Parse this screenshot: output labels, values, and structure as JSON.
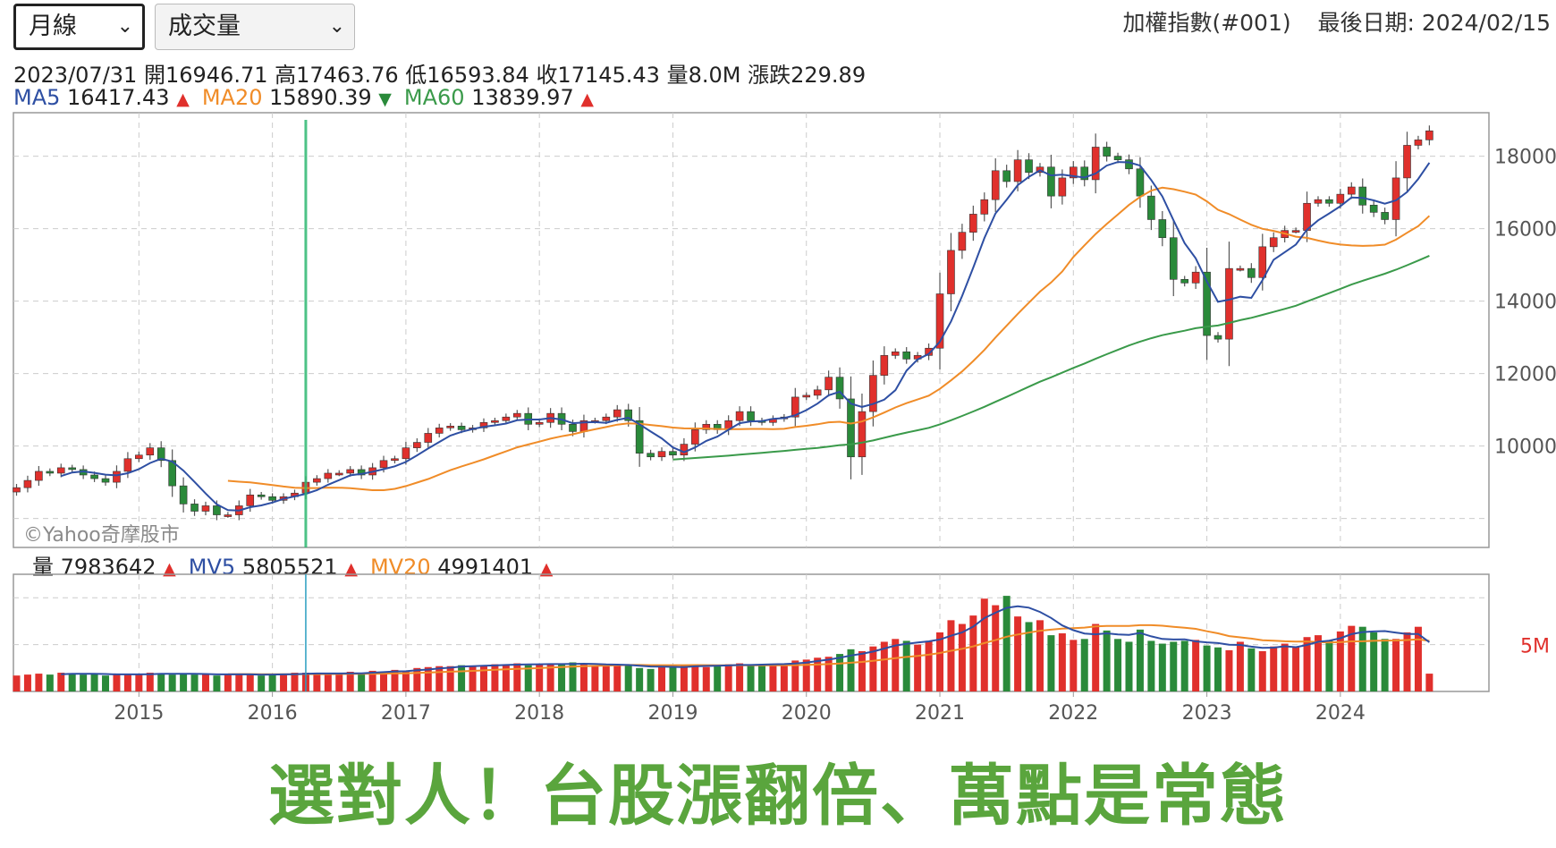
{
  "controls": {
    "period_select": {
      "label": "月線"
    },
    "indicator_select": {
      "label": "成交量"
    }
  },
  "header": {
    "index_name": "加權指數(#001)",
    "last_date_label": "最後日期: 2024/02/15"
  },
  "ohlc": {
    "date": "2023/07/31",
    "open_label": "開16946.71",
    "high_label": "高17463.76",
    "low_label": "低16593.84",
    "close_label": "收17145.43",
    "volume_label": "量8.0M",
    "change_label": "漲跌229.89"
  },
  "ma_legend": [
    {
      "name": "MA5",
      "value": "16417.43",
      "arrow": "▲",
      "trend": "up",
      "color": "#2e4fa3"
    },
    {
      "name": "MA20",
      "value": "15890.39",
      "arrow": "▼",
      "trend": "down",
      "color": "#f08c28"
    },
    {
      "name": "MA60",
      "value": "13839.97",
      "arrow": "▲",
      "trend": "up",
      "color": "#3a9a4a"
    }
  ],
  "volume_legend": [
    {
      "name": "量",
      "value": "7983642",
      "arrow": "▲",
      "trend": "up",
      "color": "#222222"
    },
    {
      "name": "MV5",
      "value": "5805521",
      "arrow": "▲",
      "trend": "up",
      "color": "#2e4fa3"
    },
    {
      "name": "MV20",
      "value": "4991401",
      "arrow": "▲",
      "trend": "up",
      "color": "#f08c28"
    }
  ],
  "watermark": "©Yahoo奇摩股市",
  "headline": "選對人！台股漲翻倍、萬點是常態",
  "colors": {
    "up": "#e0302c",
    "down": "#2a8a3a",
    "cursor": "#2eb872",
    "grid": "#cccccc"
  },
  "chart_data": [
    {
      "type": "candlestick",
      "title": "",
      "xlabel": "",
      "ylabel": "",
      "x_ticks": [
        "2015",
        "2016",
        "2017",
        "2018",
        "2019",
        "2020",
        "2021",
        "2022",
        "2023",
        "2024"
      ],
      "y_ticks": [
        10000,
        12000,
        14000,
        16000,
        18000
      ],
      "ylim": [
        7200,
        19200
      ],
      "grid": true,
      "highlighted_month": "2023/07/31",
      "monthly_closes": [
        8850,
        9050,
        9300,
        9250,
        9400,
        9350,
        9200,
        9100,
        9000,
        9300,
        9650,
        9750,
        9950,
        9600,
        8900,
        8400,
        8200,
        8350,
        8100,
        8100,
        8350,
        8650,
        8600,
        8500,
        8600,
        8700,
        9000,
        9100,
        9250,
        9250,
        9350,
        9200,
        9400,
        9600,
        9650,
        9950,
        10100,
        10350,
        10500,
        10550,
        10450,
        10500,
        10650,
        10700,
        10800,
        10900,
        10600,
        10650,
        10900,
        10600,
        10400,
        10700,
        10700,
        10800,
        11000,
        10700,
        9800,
        9700,
        9850,
        9750,
        10050,
        10450,
        10600,
        10450,
        10700,
        10950,
        10700,
        10650,
        10750,
        10800,
        11350,
        11400,
        11550,
        11900,
        11300,
        9700,
        10950,
        11950,
        12500,
        12600,
        12400,
        12500,
        12700,
        14200,
        15400,
        15900,
        16400,
        16800,
        17600,
        17300,
        17900,
        17550,
        17700,
        16900,
        17400,
        17700,
        17350,
        18250,
        18000,
        17900,
        17650,
        16900,
        16250,
        15750,
        14600,
        14500,
        14800,
        13050,
        12950,
        14900,
        14900,
        14650,
        15500,
        15750,
        15950,
        15950,
        16700,
        16800,
        16700,
        16950,
        17150,
        16650,
        16450,
        16250,
        17400,
        18300,
        18450,
        18700
      ],
      "series": [
        {
          "name": "MA5",
          "legend_value": 16417.43
        },
        {
          "name": "MA20",
          "legend_value": 15890.39
        },
        {
          "name": "MA60",
          "legend_value": 13839.97
        }
      ]
    },
    {
      "type": "bar",
      "title": "",
      "y_ticks": [
        "5M"
      ],
      "monthly_volume_millions": [
        1.7,
        1.8,
        1.9,
        1.8,
        2.0,
        1.9,
        1.8,
        1.9,
        1.7,
        1.8,
        1.9,
        1.8,
        2.0,
        1.9,
        1.8,
        1.9,
        1.8,
        1.9,
        1.7,
        1.8,
        1.9,
        1.8,
        1.7,
        1.8,
        1.9,
        2.0,
        2.0,
        1.9,
        1.8,
        1.9,
        2.1,
        2.0,
        2.2,
        2.1,
        2.3,
        2.2,
        2.5,
        2.6,
        2.7,
        2.7,
        2.8,
        2.7,
        2.8,
        2.9,
        2.9,
        3.0,
        2.8,
        2.9,
        3.0,
        2.9,
        3.1,
        2.9,
        2.8,
        2.7,
        2.8,
        2.9,
        2.5,
        2.4,
        2.6,
        2.7,
        2.8,
        2.9,
        2.6,
        2.7,
        2.9,
        3.0,
        2.9,
        2.8,
        2.9,
        3.0,
        3.3,
        3.4,
        3.6,
        3.7,
        4.0,
        4.5,
        4.3,
        4.8,
        5.3,
        5.6,
        5.4,
        5.0,
        5.4,
        6.3,
        7.6,
        7.2,
        8.1,
        9.9,
        9.2,
        10.2,
        8.0,
        7.4,
        7.6,
        6.0,
        6.2,
        5.5,
        5.6,
        7.2,
        6.5,
        5.6,
        5.3,
        6.6,
        5.4,
        5.1,
        5.3,
        5.4,
        5.5,
        4.9,
        4.7,
        4.4,
        5.3,
        4.6,
        4.3,
        4.8,
        5.1,
        4.8,
        5.8,
        6.0,
        5.4,
        6.4,
        7.0,
        6.9,
        6.3,
        5.6,
        5.6,
        6.3,
        6.9,
        1.9
      ],
      "series": [
        {
          "name": "量",
          "legend_value": 7983642
        },
        {
          "name": "MV5",
          "legend_value": 5805521
        },
        {
          "name": "MV20",
          "legend_value": 4991401
        }
      ]
    }
  ]
}
